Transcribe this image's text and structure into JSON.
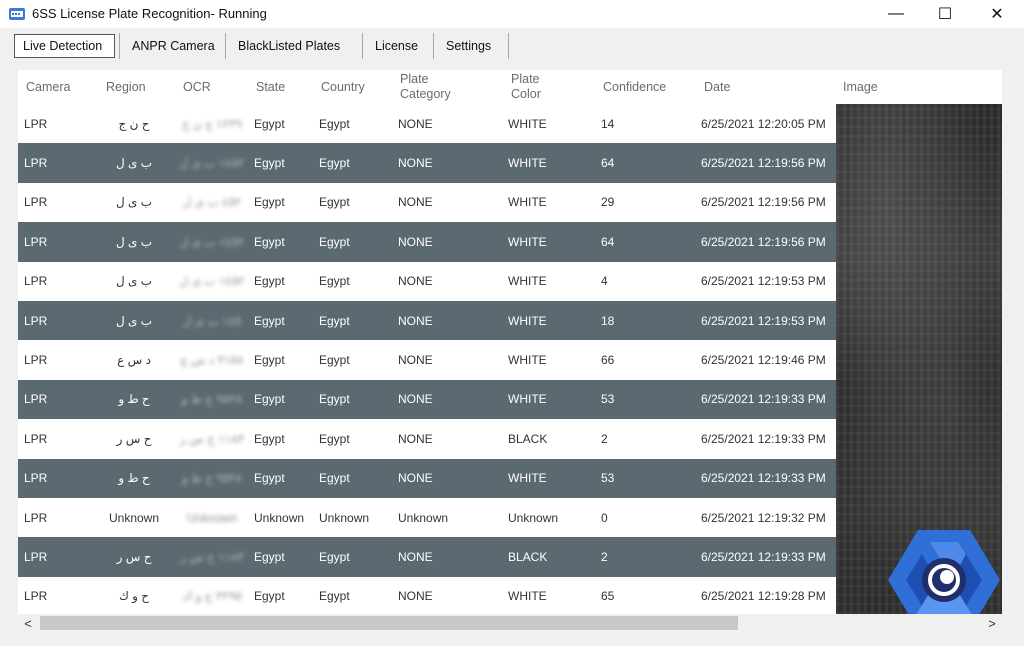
{
  "window": {
    "title": "6SS License Plate Recognition- Running",
    "minimize": "—",
    "maximize": "☐",
    "close": "✕"
  },
  "tabs": [
    {
      "label": "Live Detection",
      "active": true
    },
    {
      "label": "ANPR Camera"
    },
    {
      "label": "BlackListed Plates"
    },
    {
      "label": "License"
    },
    {
      "label": "Settings"
    }
  ],
  "columns": {
    "camera": "Camera",
    "region": "Region",
    "ocr": "OCR",
    "state": "State",
    "country": "Country",
    "plate_category": "Plate\nCategory",
    "plate_color": "Plate\nColor",
    "confidence": "Confidence",
    "date": "Date",
    "image": "Image"
  },
  "rows": [
    {
      "camera": "LPR",
      "region": "ح ن ج",
      "ocr": "١٢٣٩ ج ن ح",
      "state": "Egypt",
      "country": "Egypt",
      "category": "NONE",
      "color": "WHITE",
      "confidence": "14",
      "date": "6/25/2021 12:20:05 PM"
    },
    {
      "camera": "LPR",
      "region": "ب ى ل",
      "ocr": "١٤٥٢ ب ى ل",
      "state": "Egypt",
      "country": "Egypt",
      "category": "NONE",
      "color": "WHITE",
      "confidence": "64",
      "date": "6/25/2021 12:19:56 PM"
    },
    {
      "camera": "LPR",
      "region": "ب ى ل",
      "ocr": "٤٥٢ ب ى ل",
      "state": "Egypt",
      "country": "Egypt",
      "category": "NONE",
      "color": "WHITE",
      "confidence": "29",
      "date": "6/25/2021 12:19:56 PM"
    },
    {
      "camera": "LPR",
      "region": "ب ى ل",
      "ocr": "١٤٥٢ ب ى ل",
      "state": "Egypt",
      "country": "Egypt",
      "category": "NONE",
      "color": "WHITE",
      "confidence": "64",
      "date": "6/25/2021 12:19:56 PM"
    },
    {
      "camera": "LPR",
      "region": "ب ى ل",
      "ocr": "١٤٥٢ ب ى ل",
      "state": "Egypt",
      "country": "Egypt",
      "category": "NONE",
      "color": "WHITE",
      "confidence": "4",
      "date": "6/25/2021 12:19:53 PM"
    },
    {
      "camera": "LPR",
      "region": "ب ى ل",
      "ocr": "١٤٥ ب ى ل",
      "state": "Egypt",
      "country": "Egypt",
      "category": "NONE",
      "color": "WHITE",
      "confidence": "18",
      "date": "6/25/2021 12:19:53 PM"
    },
    {
      "camera": "LPR",
      "region": "د س ع",
      "ocr": "٣١٥٨ د س ع",
      "state": "Egypt",
      "country": "Egypt",
      "category": "NONE",
      "color": "WHITE",
      "confidence": "66",
      "date": "6/25/2021 12:19:46 PM"
    },
    {
      "camera": "LPR",
      "region": "ح ط و",
      "ocr": "٩٥٢٨ ح ط و",
      "state": "Egypt",
      "country": "Egypt",
      "category": "NONE",
      "color": "WHITE",
      "confidence": "53",
      "date": "6/25/2021 12:19:33 PM"
    },
    {
      "camera": "LPR",
      "region": "ح س ر",
      "ocr": "١١٨٣ ح س ر",
      "state": "Egypt",
      "country": "Egypt",
      "category": "NONE",
      "color": "BLACK",
      "confidence": "2",
      "date": "6/25/2021 12:19:33 PM"
    },
    {
      "camera": "LPR",
      "region": "ح ط و",
      "ocr": "٩٥٢٨ ح ط و",
      "state": "Egypt",
      "country": "Egypt",
      "category": "NONE",
      "color": "WHITE",
      "confidence": "53",
      "date": "6/25/2021 12:19:33 PM"
    },
    {
      "camera": "LPR",
      "region": "Unknown",
      "ocr": "Unknown",
      "state": "Unknown",
      "country": "Unknown",
      "category": "Unknown",
      "color": "Unknown",
      "confidence": "0",
      "date": "6/25/2021 12:19:32 PM"
    },
    {
      "camera": "LPR",
      "region": "ح س ر",
      "ocr": "١١٨٣ ح س ر",
      "state": "Egypt",
      "country": "Egypt",
      "category": "NONE",
      "color": "BLACK",
      "confidence": "2",
      "date": "6/25/2021 12:19:33 PM"
    },
    {
      "camera": "LPR",
      "region": "ح و ك",
      "ocr": "٣٢٩٥ ح و ك",
      "state": "Egypt",
      "country": "Egypt",
      "category": "NONE",
      "color": "WHITE",
      "confidence": "65",
      "date": "6/25/2021 12:19:28 PM"
    }
  ],
  "scrollbar": {
    "left": "<",
    "right": ">"
  },
  "colors": {
    "row_dark": "#5b6a70",
    "row_light": "#ffffff",
    "logo_blue": "#2f6fd6",
    "logo_navy": "#1f2f6b"
  },
  "icons": {
    "app": "license-plate-camera-icon",
    "logo": "6ss-eye-logo"
  }
}
